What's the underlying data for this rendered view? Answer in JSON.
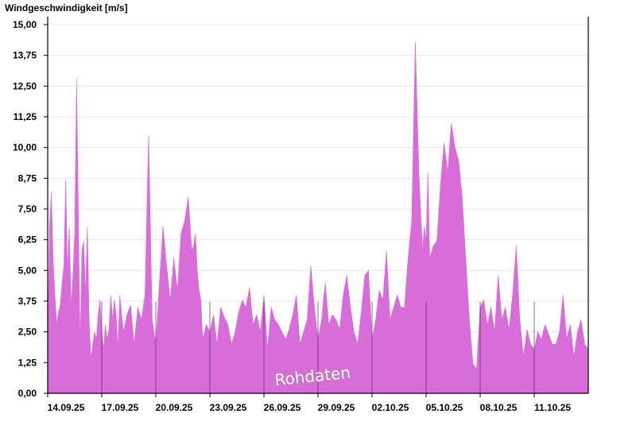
{
  "chart_data": {
    "type": "area",
    "title": "",
    "ylabel": "Windgeschwindigkeit [m/s]",
    "xlabel": "",
    "ylim": [
      0,
      15
    ],
    "xlim": [
      0,
      30
    ],
    "yticks": [
      "0,00",
      "1,25",
      "2,50",
      "3,75",
      "5,00",
      "6,25",
      "7,50",
      "8,75",
      "10,00",
      "11,25",
      "12,50",
      "13,75",
      "15,00"
    ],
    "xticks": [
      {
        "label": "14.09.25",
        "x": 0
      },
      {
        "label": "17.09.25",
        "x": 3
      },
      {
        "label": "20.09.25",
        "x": 6
      },
      {
        "label": "23.09.25",
        "x": 9
      },
      {
        "label": "26.09.25",
        "x": 12
      },
      {
        "label": "29.09.25",
        "x": 15
      },
      {
        "label": "02.10.25",
        "x": 18
      },
      {
        "label": "05.10.25",
        "x": 21
      },
      {
        "label": "08.10.25",
        "x": 24
      },
      {
        "label": "11.10.25",
        "x": 27
      }
    ],
    "grid": true,
    "series_color": "#d86cd8",
    "annotation": "Rohdaten",
    "series": [
      {
        "x": [
          0,
          0.1,
          0.2,
          0.3,
          0.4,
          0.5,
          0.6,
          0.7,
          0.8,
          0.9,
          1.0,
          1.1,
          1.2,
          1.3,
          1.4,
          1.5,
          1.6,
          1.7,
          1.8,
          1.9,
          2.0,
          2.1,
          2.2,
          2.3,
          2.4,
          2.5,
          2.6,
          2.7,
          2.8,
          2.9,
          3.0,
          3.1,
          3.2,
          3.3,
          3.4,
          3.5,
          3.6,
          3.7,
          3.8,
          3.9,
          4.0,
          4.2,
          4.4,
          4.6,
          4.8,
          5.0,
          5.2,
          5.4,
          5.6,
          5.8,
          6.0,
          6.2,
          6.4,
          6.6,
          6.8,
          7.0,
          7.2,
          7.4,
          7.6,
          7.8,
          8.0,
          8.1,
          8.2,
          8.3,
          8.4,
          8.5,
          8.6,
          8.8,
          9.0,
          9.2,
          9.4,
          9.6,
          9.8,
          10.0,
          10.2,
          10.4,
          10.6,
          10.8,
          11.0,
          11.2,
          11.4,
          11.6,
          11.8,
          12.0,
          12.2,
          12.4,
          12.6,
          12.8,
          13.0,
          13.2,
          13.4,
          13.6,
          13.8,
          14.0,
          14.2,
          14.4,
          14.6,
          14.8,
          15.0,
          15.2,
          15.4,
          15.6,
          15.8,
          16.0,
          16.2,
          16.4,
          16.6,
          16.8,
          17.0,
          17.2,
          17.4,
          17.6,
          17.8,
          18.0,
          18.2,
          18.4,
          18.6,
          18.8,
          19.0,
          19.2,
          19.4,
          19.6,
          19.8,
          20.0,
          20.2,
          20.4,
          20.6,
          20.8,
          20.9,
          21.0,
          21.1,
          21.2,
          21.4,
          21.6,
          21.8,
          22.0,
          22.2,
          22.4,
          22.6,
          22.8,
          23.0,
          23.2,
          23.4,
          23.6,
          23.8,
          24.0,
          24.2,
          24.4,
          24.6,
          24.8,
          25.0,
          25.2,
          25.4,
          25.6,
          25.8,
          26.0,
          26.2,
          26.4,
          26.6,
          26.8,
          27.0,
          27.2,
          27.4,
          27.6,
          27.8,
          28.0,
          28.2,
          28.4,
          28.6,
          28.8,
          29.0,
          29.2,
          29.4,
          29.6,
          29.8,
          30.0
        ],
        "values": [
          2.3,
          6.7,
          8.2,
          5.5,
          4.0,
          2.8,
          3.3,
          3.6,
          4.5,
          5.2,
          8.7,
          5.0,
          6.8,
          3.5,
          4.8,
          6.5,
          12.8,
          7.5,
          2.0,
          5.8,
          6.2,
          4.0,
          6.8,
          3.0,
          1.4,
          2.0,
          2.5,
          2.2,
          3.2,
          3.8,
          2.5,
          1.8,
          2.8,
          2.2,
          2.6,
          4.0,
          3.0,
          3.8,
          3.2,
          1.8,
          4.0,
          2.5,
          3.2,
          3.6,
          2.0,
          3.5,
          3.0,
          4.0,
          10.5,
          3.0,
          2.0,
          4.5,
          6.8,
          5.2,
          3.8,
          5.5,
          4.2,
          6.5,
          7.0,
          8.0,
          5.8,
          6.0,
          6.5,
          5.0,
          4.2,
          3.8,
          2.2,
          2.8,
          2.5,
          3.2,
          2.0,
          3.5,
          3.1,
          2.8,
          2.0,
          2.5,
          3.3,
          3.8,
          3.5,
          4.3,
          2.8,
          3.2,
          2.5,
          4.0,
          1.8,
          3.5,
          3.0,
          2.8,
          2.5,
          2.2,
          2.6,
          3.2,
          4.0,
          2.0,
          2.5,
          3.0,
          5.2,
          3.5,
          2.2,
          3.0,
          4.5,
          2.8,
          3.2,
          3.0,
          2.6,
          4.0,
          4.8,
          3.5,
          2.5,
          2.0,
          3.3,
          4.8,
          5.0,
          2.2,
          3.0,
          4.2,
          3.8,
          5.8,
          3.0,
          3.5,
          4.0,
          3.5,
          3.5,
          5.5,
          7.0,
          14.3,
          9.0,
          5.8,
          6.8,
          6.2,
          9.0,
          5.5,
          6.0,
          6.2,
          8.5,
          10.2,
          9.0,
          11.0,
          10.0,
          9.5,
          8.0,
          5.5,
          3.0,
          1.2,
          1.0,
          3.5,
          3.8,
          2.8,
          3.5,
          2.5,
          4.8,
          3.0,
          3.5,
          2.6,
          4.0,
          6.0,
          3.0,
          1.5,
          2.6,
          2.0,
          1.8,
          2.5,
          2.2,
          2.8,
          2.4,
          2.0,
          2.0,
          2.5,
          4.0,
          2.2,
          2.8,
          1.5,
          2.5,
          3.0,
          2.0,
          1.8
        ]
      }
    ]
  }
}
